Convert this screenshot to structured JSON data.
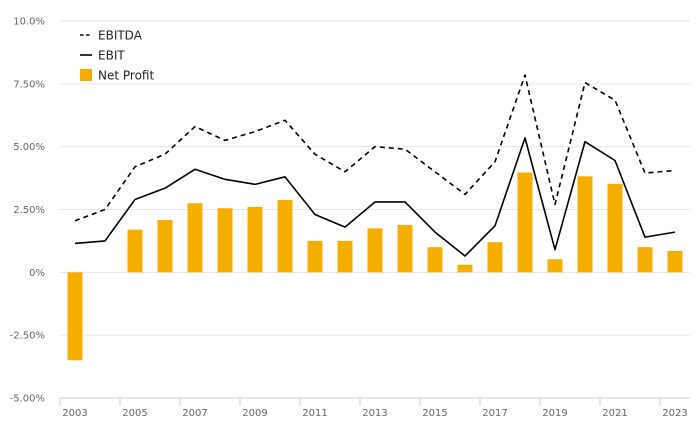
{
  "chart_data": {
    "type": "bar",
    "x": [
      2003,
      2004,
      2005,
      2006,
      2007,
      2008,
      2009,
      2010,
      2011,
      2012,
      2013,
      2014,
      2015,
      2016,
      2017,
      2018,
      2019,
      2020,
      2021,
      2022,
      2023
    ],
    "x_tick_labels": [
      "2003",
      "2005",
      "2007",
      "2009",
      "2011",
      "2013",
      "2015",
      "2017",
      "2019",
      "2021",
      "2023"
    ],
    "y_tick_labels": [
      "10.0%",
      "7.50%",
      "5.00%",
      "2.50%",
      "0%",
      "-2.50%",
      "-5.00%"
    ],
    "ylim": [
      -5.0,
      10.0
    ],
    "grid": true,
    "legend_position": "top-left",
    "series": [
      {
        "name": "EBITDA",
        "type": "line",
        "style": "dashed",
        "color": "#000000",
        "values": [
          2.05,
          2.5,
          4.2,
          4.7,
          5.8,
          5.25,
          5.6,
          6.05,
          4.7,
          4.0,
          5.0,
          4.9,
          4.0,
          3.1,
          4.4,
          7.85,
          2.7,
          7.55,
          6.85,
          3.95,
          4.05
        ]
      },
      {
        "name": "EBIT",
        "type": "line",
        "style": "solid",
        "color": "#000000",
        "values": [
          1.15,
          1.25,
          2.9,
          3.35,
          4.1,
          3.7,
          3.5,
          3.8,
          2.3,
          1.8,
          2.8,
          2.8,
          1.6,
          0.65,
          1.85,
          5.35,
          0.9,
          5.2,
          4.45,
          1.4,
          1.6
        ]
      },
      {
        "name": "Net Profit",
        "type": "bar",
        "color": "#f5ae00",
        "values": [
          -3.5,
          null,
          1.7,
          2.08,
          2.75,
          2.55,
          2.6,
          2.88,
          1.25,
          1.25,
          1.75,
          1.88,
          1.0,
          0.3,
          1.2,
          3.97,
          0.52,
          3.82,
          3.52,
          1.0,
          0.85
        ]
      }
    ]
  }
}
